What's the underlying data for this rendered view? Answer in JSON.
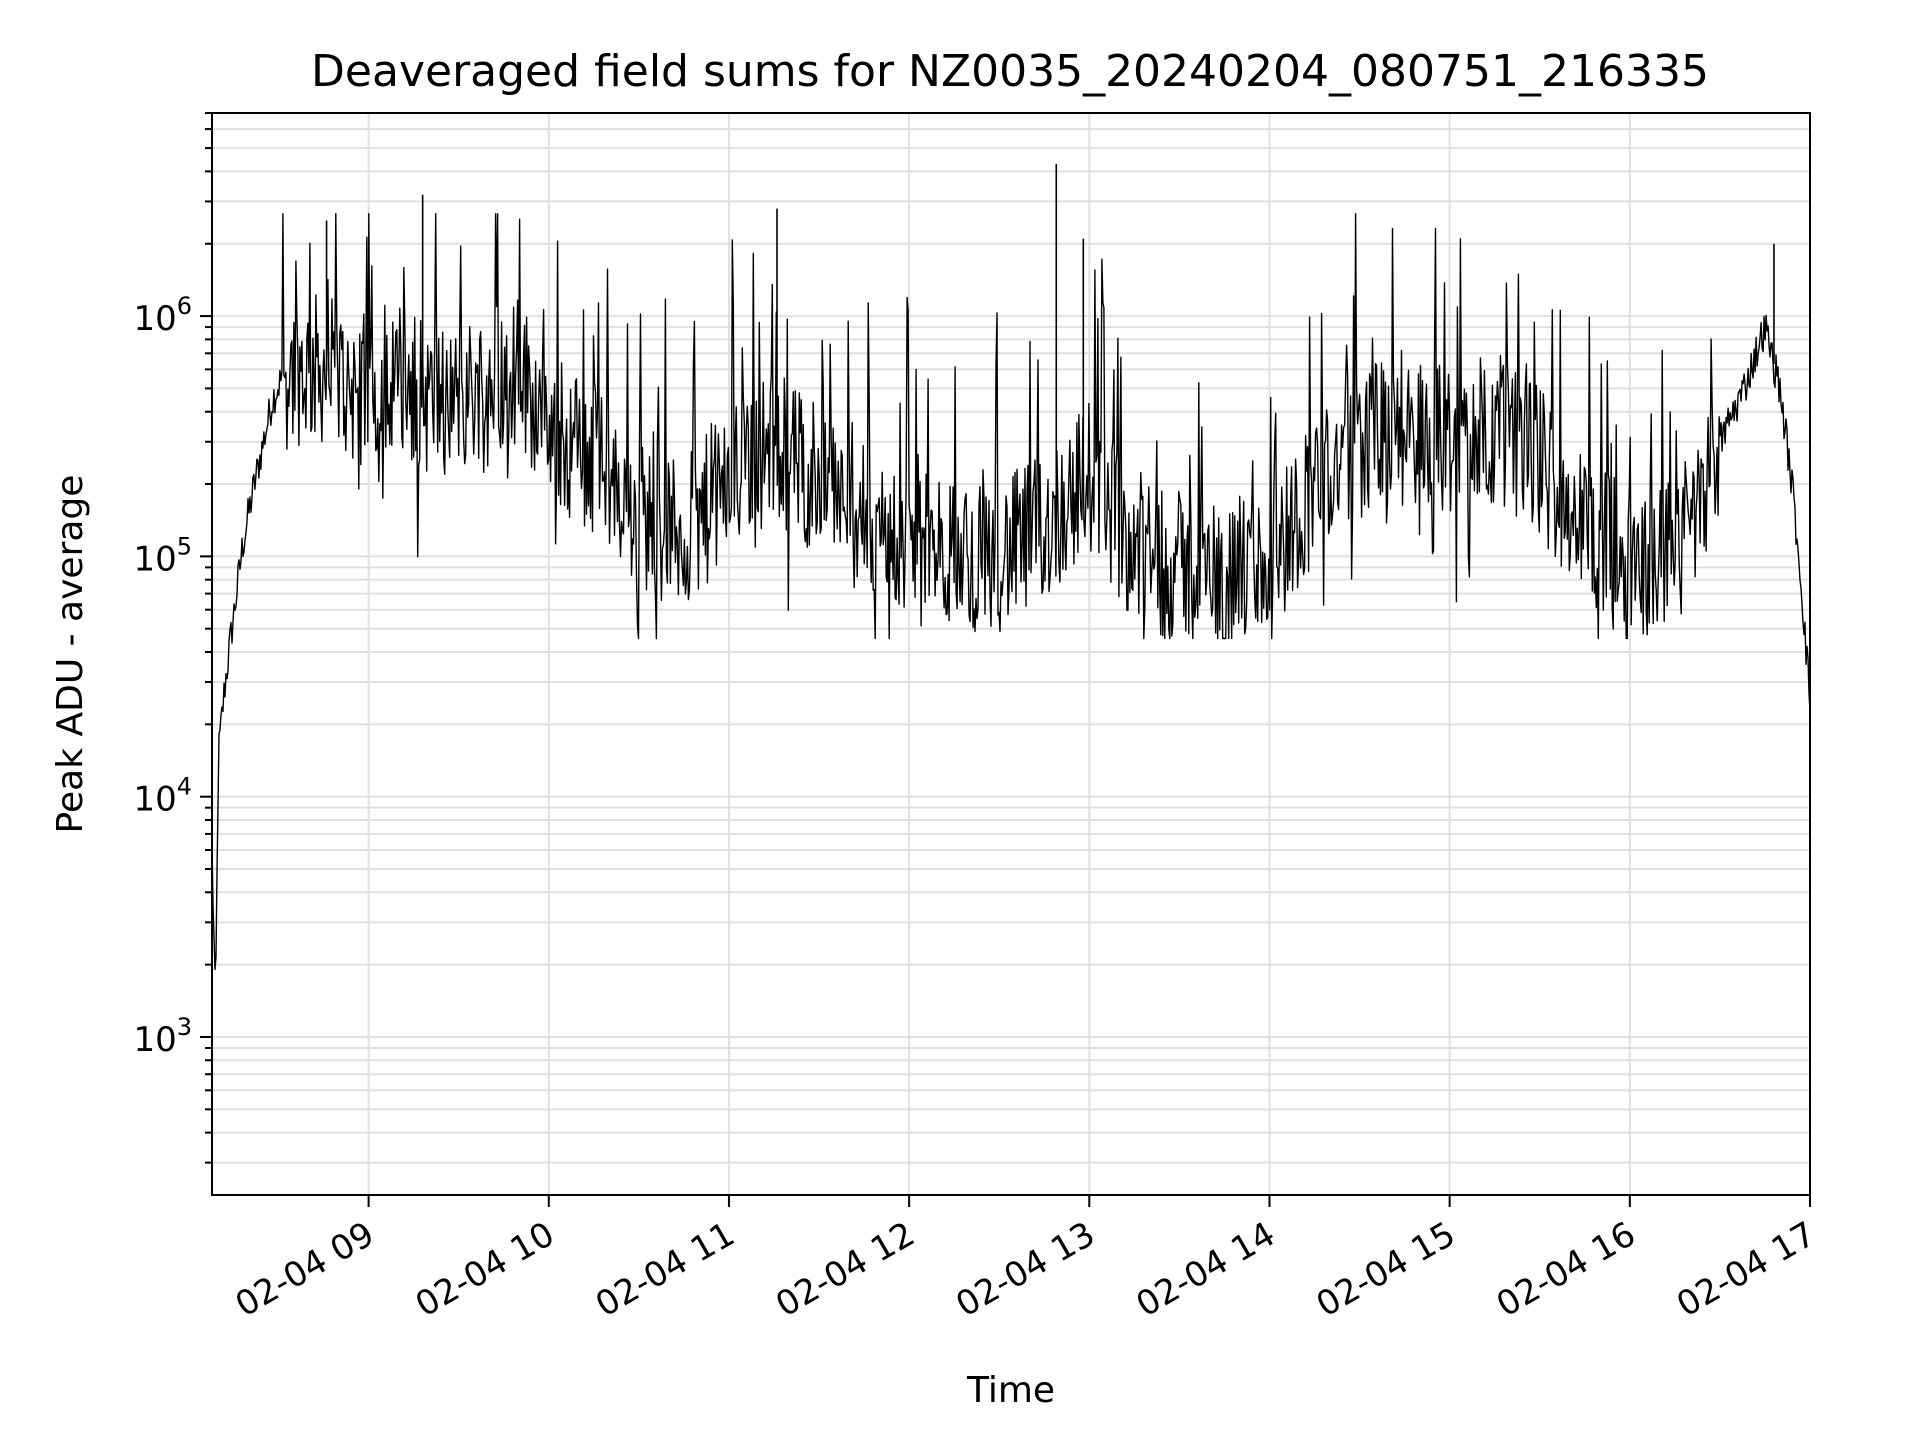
{
  "chart_data": {
    "type": "line",
    "title": "Deaveraged field sums for NZ0035_20240204_080751_216335",
    "xlabel": "Time",
    "ylabel": "Peak ADU - average",
    "x_scale": "time",
    "y_scale": "log",
    "xlim": [
      "2024-02-04 08:07:51",
      "2024-02-04 17:00:00"
    ],
    "ylim": [
      220,
      7000000
    ],
    "grid": true,
    "line_color": "#000000",
    "grid_color": "#e0e0e0",
    "x_ticks": [
      {
        "value": "2024-02-04 09:00",
        "label": "02-04 09"
      },
      {
        "value": "2024-02-04 10:00",
        "label": "02-04 10"
      },
      {
        "value": "2024-02-04 11:00",
        "label": "02-04 11"
      },
      {
        "value": "2024-02-04 12:00",
        "label": "02-04 12"
      },
      {
        "value": "2024-02-04 13:00",
        "label": "02-04 13"
      },
      {
        "value": "2024-02-04 14:00",
        "label": "02-04 14"
      },
      {
        "value": "2024-02-04 15:00",
        "label": "02-04 15"
      },
      {
        "value": "2024-02-04 16:00",
        "label": "02-04 16"
      },
      {
        "value": "2024-02-04 17:00",
        "label": "02-04 17"
      }
    ],
    "y_ticks": [
      {
        "value": 1000,
        "base": "10",
        "exp": "3"
      },
      {
        "value": 10000,
        "base": "10",
        "exp": "4"
      },
      {
        "value": 100000,
        "base": "10",
        "exp": "5"
      },
      {
        "value": 1000000,
        "base": "10",
        "exp": "6"
      }
    ],
    "series": [
      {
        "x": [
          "2024-02-04 08:07:51",
          "2024-02-04 08:09",
          "2024-02-04 08:10",
          "2024-02-04 08:12",
          "2024-02-04 08:14",
          "2024-02-04 08:16",
          "2024-02-04 08:18",
          "2024-02-04 08:20",
          "2024-02-04 08:22",
          "2024-02-04 08:25",
          "2024-02-04 08:28",
          "2024-02-04 08:31",
          "2024-02-04 08:35",
          "2024-02-04 08:40",
          "2024-02-04 08:45",
          "2024-02-04 08:50",
          "2024-02-04 08:55",
          "2024-02-04 09:00",
          "2024-02-04 09:10",
          "2024-02-04 09:20",
          "2024-02-04 09:30",
          "2024-02-04 09:40",
          "2024-02-04 09:50",
          "2024-02-04 10:00",
          "2024-02-04 10:15",
          "2024-02-04 10:30",
          "2024-02-04 10:45",
          "2024-02-04 11:00",
          "2024-02-04 11:15",
          "2024-02-04 11:30",
          "2024-02-04 11:45",
          "2024-02-04 12:00",
          "2024-02-04 12:15",
          "2024-02-04 12:30",
          "2024-02-04 12:45",
          "2024-02-04 13:00",
          "2024-02-04 13:15",
          "2024-02-04 13:30",
          "2024-02-04 13:45",
          "2024-02-04 14:00",
          "2024-02-04 14:15",
          "2024-02-04 14:30",
          "2024-02-04 14:45",
          "2024-02-04 15:00",
          "2024-02-04 15:15",
          "2024-02-04 15:30",
          "2024-02-04 15:45",
          "2024-02-04 16:00",
          "2024-02-04 16:10",
          "2024-02-04 16:20",
          "2024-02-04 16:30",
          "2024-02-04 16:38",
          "2024-02-04 16:45",
          "2024-02-04 16:50",
          "2024-02-04 16:54",
          "2024-02-04 16:57",
          "2024-02-04 17:00"
        ],
        "y": [
          6000,
          1300,
          15000,
          28000,
          45000,
          70000,
          110000,
          150000,
          200000,
          300000,
          450000,
          550000,
          600000,
          600000,
          600000,
          550000,
          500000,
          500000,
          550000,
          450000,
          450000,
          550000,
          600000,
          350000,
          250000,
          150000,
          120000,
          200000,
          300000,
          200000,
          140000,
          110000,
          100000,
          100000,
          130000,
          220000,
          110000,
          90000,
          85000,
          90000,
          200000,
          300000,
          350000,
          300000,
          350000,
          250000,
          130000,
          90000,
          100000,
          150000,
          300000,
          500000,
          900000,
          500000,
          200000,
          80000,
          25000
        ],
        "noise_floor": 60000,
        "noise_peak": 1500000
      }
    ],
    "spikes": [
      {
        "x": "2024-02-04 08:46",
        "y": 2500000
      },
      {
        "x": "2024-02-04 09:18",
        "y": 3200000
      },
      {
        "x": "2024-02-04 11:16",
        "y": 2800000
      },
      {
        "x": "2024-02-04 12:49",
        "y": 4300000
      },
      {
        "x": "2024-02-04 12:58",
        "y": 2100000
      },
      {
        "x": "2024-02-04 16:48",
        "y": 2000000
      }
    ]
  }
}
